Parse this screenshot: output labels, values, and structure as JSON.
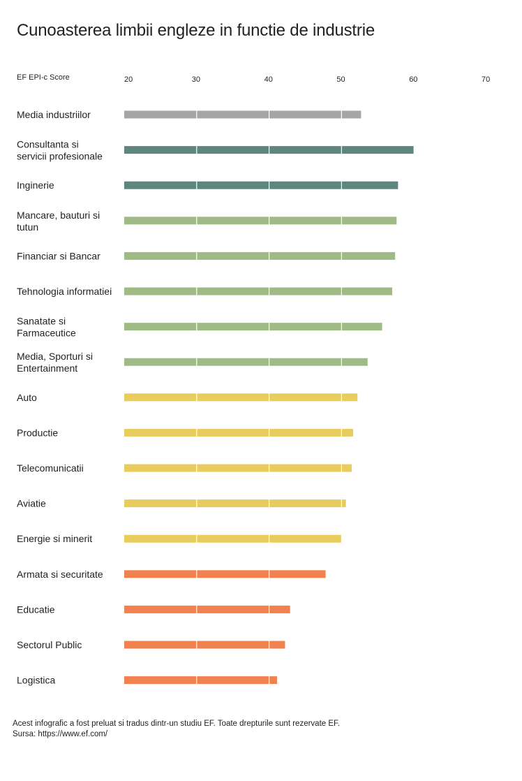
{
  "title": "Cunoasterea limbii engleze in functie de industrie",
  "footer": {
    "line1": "Acest infografic a fost preluat si tradus dintr-un studiu EF. Toate drepturile sunt rezervate EF.",
    "line2": "Sursa: https://www.ef.com/"
  },
  "chart_data": {
    "type": "bar",
    "orientation": "horizontal",
    "xlabel": "EF EPI-c Score",
    "xlim": [
      20,
      70
    ],
    "xticks": [
      20,
      30,
      40,
      50,
      60,
      70
    ],
    "grid": true,
    "categories": [
      [
        "Media industriilor"
      ],
      [
        "Consultanta si",
        "servicii profesionale"
      ],
      [
        "Inginerie"
      ],
      [
        "Mancare, bauturi si",
        "tutun"
      ],
      [
        "Financiar si Bancar"
      ],
      [
        "Tehnologia informatiei"
      ],
      [
        "Sanatate si",
        "Farmaceutice"
      ],
      [
        "Media, Sporturi si",
        "Entertainment"
      ],
      [
        "Auto"
      ],
      [
        "Productie"
      ],
      [
        "Telecomunicatii"
      ],
      [
        "Aviatie"
      ],
      [
        "Energie si minerit"
      ],
      [
        "Armata si securitate"
      ],
      [
        "Educatie"
      ],
      [
        "Sectorul Public"
      ],
      [
        "Logistica"
      ]
    ],
    "values": [
      52.7,
      60.0,
      57.8,
      57.6,
      57.4,
      57.0,
      55.6,
      53.6,
      52.2,
      51.6,
      51.4,
      50.6,
      50.0,
      47.8,
      42.9,
      42.2,
      41.1
    ],
    "colors": [
      "#a3a5a7",
      "#5d877d",
      "#5d877d",
      "#9ebb86",
      "#9ebb86",
      "#9ebb86",
      "#9ebb86",
      "#9ebb86",
      "#e8cc5e",
      "#e8cc5e",
      "#e8cc5e",
      "#e8cc5e",
      "#e8cc5e",
      "#f28150",
      "#f28150",
      "#f28150",
      "#f28150"
    ]
  }
}
